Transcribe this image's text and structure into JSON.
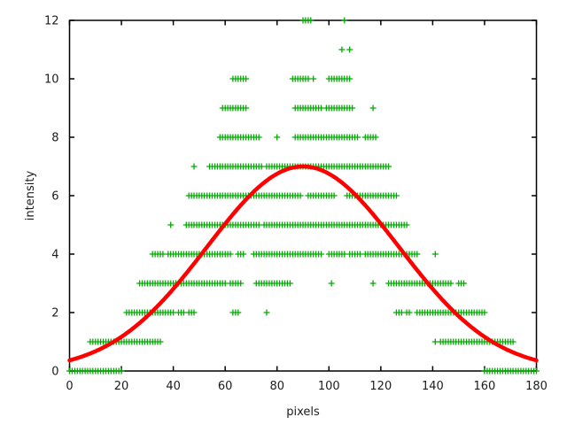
{
  "chart_data": {
    "type": "scatter",
    "title": "",
    "xlabel": "pixels",
    "ylabel": "intensity",
    "xlim": [
      0,
      180
    ],
    "ylim": [
      0,
      12
    ],
    "xticks": [
      0,
      20,
      40,
      60,
      80,
      100,
      120,
      140,
      160,
      180
    ],
    "yticks": [
      0,
      2,
      4,
      6,
      8,
      10,
      12
    ],
    "grid": false,
    "legend": "none",
    "background_color": "#ffffff",
    "axis_color": "#000000",
    "tick_label_color": "#1c1c1c",
    "series": [
      {
        "name": "intensity-samples",
        "type": "scatter",
        "marker": "plus",
        "color": "#00aa00",
        "marker_size": 7,
        "x_step": 1,
        "bands": [
          {
            "y": 0,
            "segments": [
              [
                0,
                20
              ],
              [
                160,
                180
              ]
            ],
            "singles": []
          },
          {
            "y": 1,
            "segments": [
              [
                8,
                35
              ],
              [
                143,
                171
              ]
            ],
            "singles": [
              141
            ]
          },
          {
            "y": 2,
            "segments": [
              [
                22,
                40
              ],
              [
                42,
                44
              ],
              [
                46,
                48
              ],
              [
                63,
                65
              ],
              [
                126,
                128
              ],
              [
                130,
                131
              ],
              [
                134,
                160
              ]
            ],
            "singles": [
              76
            ]
          },
          {
            "y": 3,
            "segments": [
              [
                27,
                60
              ],
              [
                62,
                66
              ],
              [
                72,
                85
              ],
              [
                123,
                147
              ],
              [
                150,
                152
              ]
            ],
            "singles": [
              101,
              117
            ]
          },
          {
            "y": 4,
            "segments": [
              [
                32,
                36
              ],
              [
                38,
                62
              ],
              [
                65,
                67
              ],
              [
                71,
                97
              ],
              [
                100,
                106
              ],
              [
                108,
                112
              ],
              [
                114,
                134
              ]
            ],
            "singles": [
              141
            ]
          },
          {
            "y": 5,
            "segments": [
              [
                45,
                73
              ],
              [
                75,
                130
              ]
            ],
            "singles": [
              39
            ]
          },
          {
            "y": 6,
            "segments": [
              [
                46,
                89
              ],
              [
                92,
                102
              ],
              [
                107,
                126
              ]
            ],
            "singles": []
          },
          {
            "y": 7,
            "segments": [
              [
                54,
                74
              ],
              [
                76,
                123
              ]
            ],
            "singles": [
              48
            ]
          },
          {
            "y": 8,
            "segments": [
              [
                58,
                73
              ],
              [
                87,
                111
              ],
              [
                114,
                118
              ]
            ],
            "singles": [
              80
            ]
          },
          {
            "y": 9,
            "segments": [
              [
                59,
                68
              ],
              [
                87,
                97
              ],
              [
                99,
                109
              ]
            ],
            "singles": [
              117
            ]
          },
          {
            "y": 10,
            "segments": [
              [
                63,
                68
              ],
              [
                86,
                92
              ],
              [
                100,
                108
              ]
            ],
            "singles": [
              94
            ]
          },
          {
            "y": 11,
            "segments": [],
            "singles": [
              105,
              108
            ]
          },
          {
            "y": 12,
            "segments": [
              [
                90,
                93
              ]
            ],
            "singles": [
              106
            ]
          }
        ]
      },
      {
        "name": "fit-curve",
        "type": "curve",
        "model": "gaussian",
        "amplitude": 7,
        "center": 90,
        "sigma": 37,
        "color": "#ff0000",
        "line_width": 4.5
      }
    ]
  }
}
